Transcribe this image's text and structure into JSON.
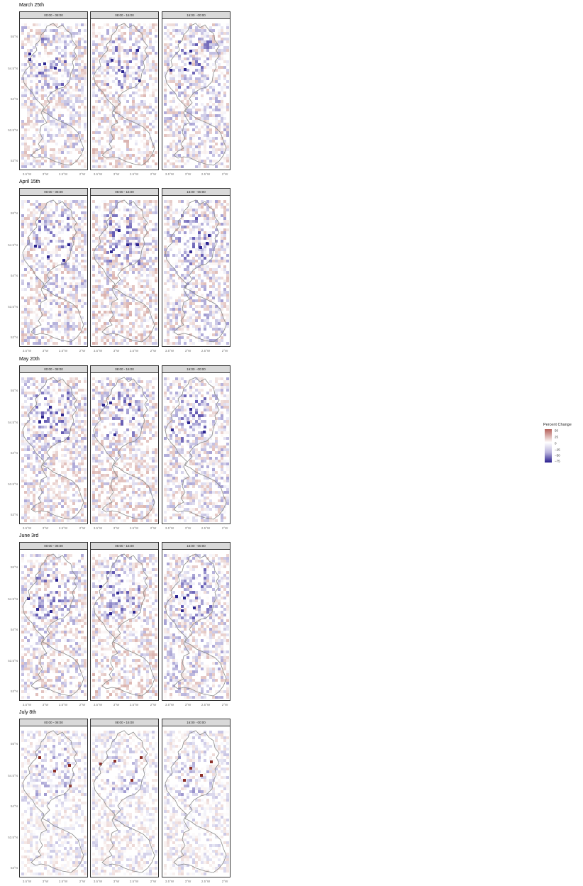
{
  "panel_labels": [
    "00:00 - 08:00",
    "08:00 - 16:00",
    "16:00 - 00:00"
  ],
  "dates": [
    {
      "title": "March 25th"
    },
    {
      "title": "April 15th"
    },
    {
      "title": "May 20th"
    },
    {
      "title": "June 3rd"
    },
    {
      "title": "July 8th"
    }
  ],
  "axes": {
    "lat_labels": [
      "55°N",
      "54.5°N",
      "54°N",
      "53.5°N",
      "53°N"
    ],
    "lon_labels": [
      "3.5°W",
      "3°W",
      "2.5°W",
      "2°W"
    ]
  },
  "legend": {
    "title": "Percent Change",
    "labels": [
      "50",
      "25",
      "0",
      "−25",
      "−50",
      "−75"
    ],
    "colors": {
      "high": "#b5605a",
      "mid": "#ffffff",
      "low": "#2a1f8f"
    }
  },
  "map_data": {
    "cell_intensity_by_date": [
      0.55,
      0.6,
      0.55,
      0.55,
      0.35
    ],
    "time_bias": [
      0.1,
      0.6,
      -0.1
    ]
  }
}
